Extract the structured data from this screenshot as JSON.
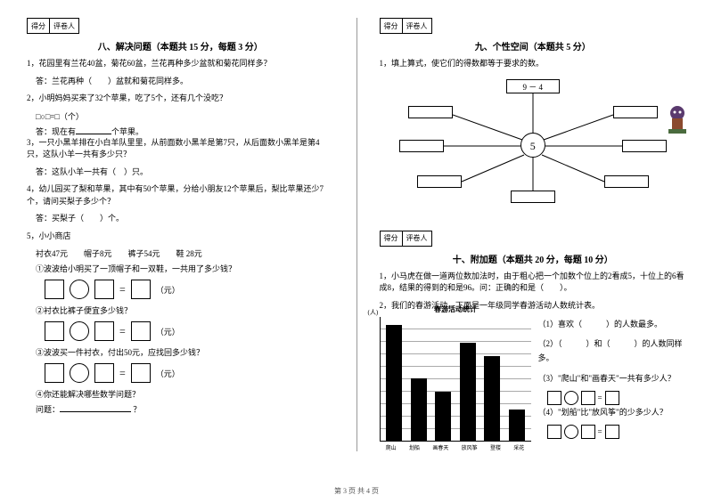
{
  "score_labels": {
    "score": "得分",
    "grader": "评卷人"
  },
  "left": {
    "section_title": "八、解决问题（本题共 15 分，每题 3 分）",
    "q1": "1，花园里有兰花40盆，菊花60盆，兰花再种多少盆就和菊花同样多？",
    "q1_ans": "答：兰花再种（　　）盆就和菊花同样多。",
    "q2": "2，小明妈妈买来了32个苹果，吃了5个，还有几个没吃？",
    "q2_formula": "□○□=□（个）",
    "q2_ans_prefix": "答：现在有",
    "q2_ans_suffix": "个苹果。",
    "q3": "3，一只小黑羊排在小白羊队里里，从前面数小黑羊是第7只，从后面数小黑羊是第4只，这队小羊一共有多少只？",
    "q3_ans": "答：这队小羊一共有（　）只。",
    "q4": "4，幼儿园买了梨和苹果，其中有50个苹果，分给小朋友12个苹果后，梨比苹果还少7个，请问买梨子多少个？",
    "q4_ans": "答：买梨子（　　）个。",
    "q5": "5，小小商店",
    "q5_prices": "衬衣47元　　帽子8元　　裤子54元　　鞋 28元",
    "q5_1": "①波波给小明买了一顶帽子和一双鞋，一共用了多少钱？",
    "q5_2": "②衬衣比裤子便宜多少钱？",
    "q5_3": "③波波买一件衬衣，付出50元，应找回多少钱？",
    "q5_4": "④你还能解决哪些数学问题？",
    "q5_4_q": "问题：",
    "unit": "（元）"
  },
  "right": {
    "section9_title": "九、个性空间（本题共 5 分）",
    "q9_1": "1，填上算式，使它们的得数都等于要求的数。",
    "spider_top": "9 － 4",
    "spider_center": "5",
    "section10_title": "十、附加题（本题共 20 分，每题 10 分）",
    "q10_1": "1，小马虎在做一道两位数加法时，由于粗心把一个加数个位上的2看成5，十位上的6看成8，结果的得到的和是96。问：正确的和是（　　）。",
    "q10_2": "2，我们的春游活动，下面是一年级同学春游活动人数统计表。",
    "chart_title": "春游活动统计",
    "y_label": "(人)",
    "bars": [
      {
        "label": "爬山",
        "value": 130
      },
      {
        "label": "划船",
        "value": 70
      },
      {
        "label": "画春天",
        "value": 55
      },
      {
        "label": "放风筝",
        "value": 110
      },
      {
        "label": "登楼",
        "value": 95
      },
      {
        "label": "采花",
        "value": 35
      }
    ],
    "chart_q1": "（1）喜欢（　　　）的人数最多。",
    "chart_q2": "（2）（　　　）和（　　　）的人数同样多。",
    "chart_q3": "（3）\"爬山\"和\"画春天\"一共有多少人？",
    "chart_q4": "（4）\"划船\"比\"放风筝\"的少多少人？"
  },
  "footer": "第 3 页 共 4 页",
  "colors": {
    "text": "#000000",
    "bg": "#ffffff",
    "grid": "#aaaaaa"
  }
}
